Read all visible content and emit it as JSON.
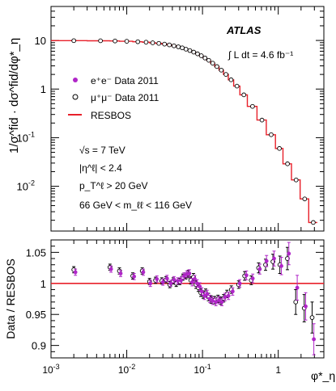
{
  "chart_data": [
    {
      "type": "scatter",
      "panel": "top",
      "title": "",
      "xscale": "log",
      "yscale": "log",
      "xlim": [
        0.001,
        4.0
      ],
      "ylim": [
        0.0012,
        50
      ],
      "ylabel": "1/σ^fid · dσ^fid/dφ*_η",
      "yticks": [
        "10^-2",
        "10^-1",
        "1",
        "10"
      ],
      "legend_placement": "top-left",
      "annotations": {
        "experiment": "ATLAS",
        "luminosity": "∫ L dt = 4.6 fb⁻¹",
        "cuts": [
          "√s = 7 TeV",
          "|η^ℓ| < 2.4",
          "p_T^ℓ > 20 GeV",
          "66 GeV < m_ℓℓ < 116 GeV"
        ]
      },
      "legend": [
        {
          "marker": "filled-circle",
          "color": "#b026c8",
          "label": "e⁺e⁻ Data 2011"
        },
        {
          "marker": "open-circle",
          "color": "#000000",
          "label": "μ⁺μ⁻ Data 2011"
        },
        {
          "marker": "line",
          "color": "#e8202a",
          "label": "RESBOS"
        }
      ],
      "bin_edges": [
        0.001,
        0.003,
        0.006,
        0.008,
        0.012,
        0.016,
        0.02,
        0.024,
        0.029,
        0.034,
        0.039,
        0.045,
        0.051,
        0.057,
        0.064,
        0.072,
        0.081,
        0.091,
        0.102,
        0.114,
        0.128,
        0.145,
        0.165,
        0.189,
        0.219,
        0.258,
        0.312,
        0.391,
        0.524,
        0.695,
        0.918,
        1.153,
        1.496,
        1.947,
        2.522,
        3.277
      ],
      "x": [
        0.002,
        0.0045,
        0.007,
        0.01,
        0.014,
        0.018,
        0.022,
        0.0265,
        0.0315,
        0.0365,
        0.042,
        0.048,
        0.054,
        0.0605,
        0.068,
        0.0765,
        0.086,
        0.0965,
        0.108,
        0.121,
        0.1365,
        0.155,
        0.177,
        0.204,
        0.2385,
        0.285,
        0.3515,
        0.4575,
        0.6095,
        0.8065,
        1.0355,
        1.3245,
        1.7215,
        2.2345,
        2.8995
      ],
      "series": [
        {
          "name": "RESBOS",
          "marker": "line",
          "color": "#e8202a",
          "values": [
            9.9,
            9.85,
            9.75,
            9.6,
            9.4,
            9.2,
            8.95,
            8.7,
            8.4,
            8.1,
            7.75,
            7.4,
            7.05,
            6.6,
            6.2,
            5.75,
            5.3,
            4.85,
            4.35,
            3.9,
            3.4,
            2.9,
            2.45,
            2.0,
            1.55,
            1.15,
            0.76,
            0.44,
            0.23,
            0.115,
            0.06,
            0.029,
            0.0135,
            0.0055,
            0.0018
          ]
        },
        {
          "name": "e⁺e⁻ Data 2011",
          "marker": "filled-circle",
          "color": "#b026c8",
          "values": [
            9.9,
            9.85,
            9.75,
            9.6,
            9.4,
            9.2,
            8.95,
            8.7,
            8.4,
            8.1,
            7.75,
            7.4,
            7.05,
            6.6,
            6.2,
            5.75,
            5.3,
            4.85,
            4.35,
            3.9,
            3.4,
            2.9,
            2.45,
            2.0,
            1.55,
            1.15,
            0.76,
            0.44,
            0.23,
            0.115,
            0.06,
            0.029,
            0.0135,
            0.0055,
            0.0018
          ]
        },
        {
          "name": "μ⁺μ⁻ Data 2011",
          "marker": "open-circle",
          "color": "#000000",
          "values": [
            9.9,
            9.85,
            9.75,
            9.6,
            9.4,
            9.2,
            8.95,
            8.7,
            8.4,
            8.1,
            7.75,
            7.4,
            7.05,
            6.6,
            6.2,
            5.75,
            5.3,
            4.85,
            4.35,
            3.9,
            3.4,
            2.9,
            2.45,
            2.0,
            1.55,
            1.15,
            0.76,
            0.44,
            0.23,
            0.115,
            0.06,
            0.029,
            0.0135,
            0.0055,
            0.0018
          ]
        }
      ]
    },
    {
      "type": "scatter",
      "panel": "ratio",
      "xscale": "log",
      "xlim": [
        0.001,
        4.0
      ],
      "ylim": [
        0.88,
        1.07
      ],
      "xlabel": "φ*_η",
      "ylabel": "Data / RESBOS",
      "xticks": [
        "10^-3",
        "10^-2",
        "10^-1",
        "1"
      ],
      "yticks": [
        "0.9",
        "0.95",
        "1",
        "1.05"
      ],
      "reference_line": 1.0,
      "series": [
        {
          "name": "μ⁺μ⁻ Data 2011",
          "marker": "open-circle",
          "color": "#000000",
          "x": [
            0.002,
            0.006,
            0.008,
            0.012,
            0.016,
            0.02,
            0.024,
            0.029,
            0.033,
            0.037,
            0.041,
            0.045,
            0.05,
            0.055,
            0.06,
            0.065,
            0.07,
            0.076,
            0.082,
            0.088,
            0.095,
            0.102,
            0.11,
            0.12,
            0.13,
            0.145,
            0.16,
            0.175,
            0.19,
            0.21,
            0.24,
            0.3,
            0.36,
            0.44,
            0.55,
            0.68,
            0.85,
            1.05,
            1.32,
            1.7,
            2.2,
            2.8
          ],
          "values": [
            1.022,
            1.026,
            1.02,
            1.012,
            1.02,
            1.003,
            1.005,
            1.004,
            1.006,
            0.998,
            1.004,
            1.0,
            1.003,
            1.01,
            1.012,
            1.015,
            1.005,
            1.01,
            0.998,
            0.993,
            0.985,
            0.982,
            0.985,
            0.978,
            0.974,
            0.973,
            0.975,
            0.972,
            0.976,
            0.983,
            0.99,
            0.998,
            1.012,
            1.005,
            1.025,
            1.03,
            1.035,
            1.03,
            1.04,
            0.97,
            0.96,
            0.945
          ],
          "errors": [
            0.005,
            0.005,
            0.005,
            0.005,
            0.005,
            0.005,
            0.005,
            0.005,
            0.005,
            0.005,
            0.005,
            0.005,
            0.005,
            0.005,
            0.005,
            0.006,
            0.006,
            0.006,
            0.006,
            0.006,
            0.006,
            0.006,
            0.006,
            0.006,
            0.006,
            0.006,
            0.006,
            0.006,
            0.006,
            0.006,
            0.006,
            0.006,
            0.007,
            0.007,
            0.008,
            0.009,
            0.012,
            0.014,
            0.018,
            0.02,
            0.022,
            0.025
          ]
        },
        {
          "name": "e⁺e⁻ Data 2011",
          "marker": "filled-circle",
          "color": "#b026c8",
          "x": [
            0.0021,
            0.0062,
            0.0083,
            0.0125,
            0.0165,
            0.0205,
            0.025,
            0.03,
            0.034,
            0.038,
            0.042,
            0.047,
            0.052,
            0.057,
            0.062,
            0.067,
            0.073,
            0.079,
            0.085,
            0.092,
            0.098,
            0.106,
            0.115,
            0.125,
            0.136,
            0.15,
            0.165,
            0.18,
            0.198,
            0.22,
            0.25,
            0.31,
            0.38,
            0.46,
            0.57,
            0.7,
            0.88,
            1.1,
            1.38,
            1.78,
            2.3,
            2.95
          ],
          "values": [
            1.018,
            1.023,
            1.016,
            1.011,
            1.018,
            1.0,
            1.007,
            1.002,
            1.008,
            1.0,
            1.006,
            1.004,
            1.005,
            1.012,
            1.015,
            1.016,
            1.002,
            1.007,
            1.0,
            0.995,
            0.987,
            0.98,
            0.983,
            0.975,
            0.972,
            0.97,
            0.973,
            0.97,
            0.978,
            0.98,
            0.987,
            1.0,
            1.013,
            1.008,
            1.023,
            1.036,
            1.04,
            1.028,
            1.048,
            0.993,
            0.963,
            0.91
          ],
          "errors": [
            0.005,
            0.005,
            0.005,
            0.005,
            0.005,
            0.005,
            0.005,
            0.005,
            0.005,
            0.005,
            0.005,
            0.005,
            0.005,
            0.005,
            0.005,
            0.006,
            0.006,
            0.006,
            0.006,
            0.006,
            0.006,
            0.006,
            0.006,
            0.006,
            0.006,
            0.006,
            0.006,
            0.006,
            0.006,
            0.006,
            0.006,
            0.006,
            0.007,
            0.007,
            0.008,
            0.009,
            0.012,
            0.014,
            0.018,
            0.02,
            0.022,
            0.025
          ]
        }
      ]
    }
  ]
}
